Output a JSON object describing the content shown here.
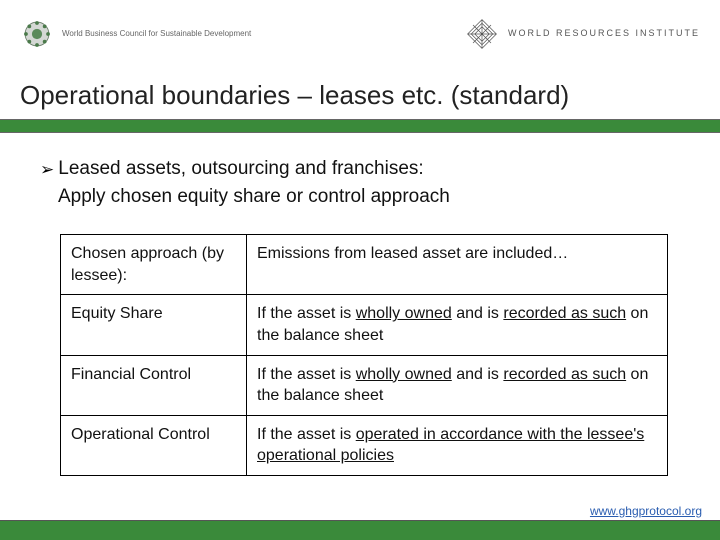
{
  "header": {
    "left_logo_text": "World Business Council for\nSustainable Development",
    "right_logo_text": "WORLD\nRESOURCES\nINSTITUTE"
  },
  "title": "Operational boundaries – leases etc. (standard)",
  "bullet": {
    "line1": "Leased assets, outsourcing and franchises:",
    "line2": "Apply chosen equity share or control approach"
  },
  "table": {
    "rows": [
      {
        "left": "Chosen approach (by lessee):",
        "right_html": "Emissions from leased asset are included…"
      },
      {
        "left": "Equity Share",
        "right_html": "If the asset is <span class=\"u\">wholly owned</span> and is <span class=\"u\">recorded as such</span> on the balance sheet"
      },
      {
        "left": "Financial Control",
        "right_html": "If the asset is <span class=\"u\">wholly owned</span> and is <span class=\"u\">recorded as such</span> on the balance sheet"
      },
      {
        "left": "Operational Control",
        "right_html": "If the asset is <span class=\"u\">operated in accordance with the lessee's operational policies</span>"
      }
    ]
  },
  "footer_link": "www.ghgprotocol.org",
  "colors": {
    "green_bar": "#3a8a3a",
    "link": "#2a5db0",
    "text": "#111111"
  }
}
